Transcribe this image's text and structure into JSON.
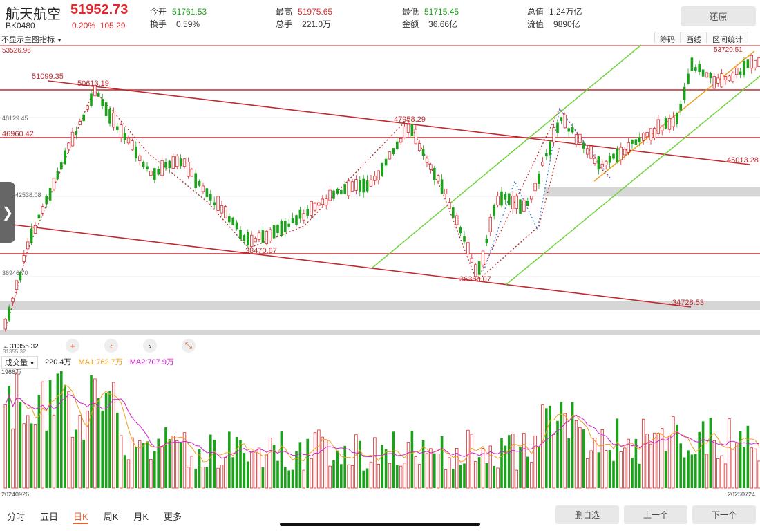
{
  "header": {
    "name": "航天航空",
    "price": "51952.73",
    "code": "BK0480",
    "change_pct": "0.20%",
    "change_abs": "105.29",
    "stats": [
      {
        "label": "今开",
        "value": "51761.53",
        "color": "green"
      },
      {
        "label": "最高",
        "value": "51975.65",
        "color": "red"
      },
      {
        "label": "最低",
        "value": "51715.45",
        "color": "green"
      },
      {
        "label": "总值",
        "value": "1.24万亿",
        "color": ""
      },
      {
        "label": "换手",
        "value": "0.59%",
        "color": ""
      },
      {
        "label": "总手",
        "value": "221.0万",
        "color": ""
      },
      {
        "label": "金额",
        "value": "36.66亿",
        "color": ""
      },
      {
        "label": "流值",
        "value": "9890亿",
        "color": ""
      }
    ],
    "restore_label": "还原"
  },
  "indicator_selector": "不显示主图指标",
  "tool_tabs": [
    "筹码",
    "画线",
    "区间统计"
  ],
  "price_chart": {
    "ymax_label": "53526.96",
    "ymin_label": "31355.32",
    "ymin_arrow_label": "←31355.32",
    "y_labels": [
      "48129.45",
      "46960.42",
      "36946.70",
      "42538.08"
    ],
    "annotations": [
      "51099.35",
      "50613.19",
      "47958.29",
      "45013.28",
      "38470.67",
      "36368.07",
      "34728.53",
      "53720.51"
    ],
    "horizontal_levels": [
      51099.35,
      46960.42,
      38470.67
    ],
    "colors": {
      "up": "#e0292e",
      "down": "#19a319",
      "channel": "#c0282e",
      "green_channel": "#6fd23a",
      "orange": "#f0a020"
    }
  },
  "nav_buttons": [
    "plus-icon",
    "chevron-left-icon",
    "chevron-right-icon",
    "shrink-icon"
  ],
  "volume": {
    "selector": "成交量",
    "current": "220.4万",
    "ma1": "MA1:762.7万",
    "ma2": "MA2:707.9万",
    "ymax_label": "1966万",
    "start_date": "20240926",
    "end_date": "20250724",
    "colors": {
      "ma1": "#f0a020",
      "ma2": "#d020d0"
    }
  },
  "bottom_tabs": [
    "分时",
    "五日",
    "日K",
    "周K",
    "月K",
    "更多"
  ],
  "bottom_active": "日K",
  "buttons": {
    "remove_watch": "删自选",
    "prev": "上一个",
    "next": "下一个"
  },
  "handle_icon": "❯"
}
